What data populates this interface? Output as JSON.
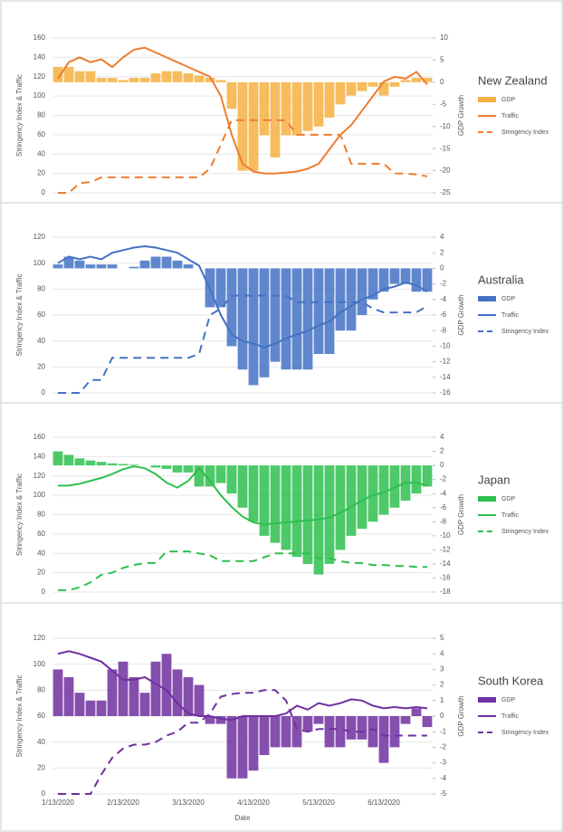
{
  "chart_data": [
    {
      "type": "combo",
      "title": "New Zealand",
      "y_label": "Stringency Index & Traffic",
      "y2_label": "GDP Growth",
      "ylim": [
        0,
        160
      ],
      "yticks": [
        0,
        20,
        40,
        60,
        80,
        100,
        120,
        140,
        160
      ],
      "y2lim": [
        -25,
        10
      ],
      "y2ticks": [
        -25,
        -20,
        -15,
        -10,
        -5,
        0,
        5,
        10
      ],
      "series": [
        {
          "name": "GDP",
          "kind": "bar",
          "axis": "y2",
          "color": "#f5b041",
          "values": [
            3.5,
            3.5,
            2.5,
            2.5,
            1,
            1,
            0.5,
            1,
            1,
            2,
            2.5,
            2.5,
            2,
            1.5,
            1,
            0.5,
            -6,
            -20,
            -20,
            -12,
            -17,
            -12,
            -12,
            -11,
            -10,
            -8,
            -5,
            -3,
            -2,
            -1,
            -3,
            -1,
            0.5,
            1,
            1
          ]
        },
        {
          "name": "Traffic",
          "kind": "line",
          "color": "#ed7d31",
          "values": [
            118,
            135,
            140,
            135,
            138,
            130,
            140,
            148,
            150,
            145,
            140,
            135,
            130,
            125,
            120,
            100,
            60,
            30,
            22,
            20,
            20,
            21,
            22,
            25,
            30,
            45,
            60,
            70,
            85,
            100,
            115,
            120,
            118,
            125,
            112
          ]
        },
        {
          "name": "Stringency Index",
          "kind": "line",
          "dashed": true,
          "color": "#ed7d31",
          "values": [
            0,
            0,
            10,
            11,
            16,
            16,
            16,
            16,
            16,
            16,
            16,
            16,
            16,
            16,
            25,
            50,
            75,
            75,
            75,
            75,
            75,
            75,
            60,
            60,
            60,
            60,
            60,
            30,
            30,
            30,
            30,
            20,
            20,
            19,
            17
          ]
        }
      ]
    },
    {
      "type": "combo",
      "title": "Australia",
      "y_label": "Stringency Index & Traffic",
      "y2_label": "GDP Growth",
      "ylim": [
        0,
        120
      ],
      "yticks": [
        0,
        20,
        40,
        60,
        80,
        100,
        120
      ],
      "y2lim": [
        -16,
        4
      ],
      "y2ticks": [
        -16,
        -14,
        -12,
        -10,
        -8,
        -6,
        -4,
        -2,
        0,
        2,
        4
      ],
      "series": [
        {
          "name": "GDP",
          "kind": "bar",
          "axis": "y2",
          "color": "#4472c4",
          "values": [
            0.5,
            1.5,
            1,
            0.5,
            0.5,
            0.5,
            0,
            0.2,
            1,
            1.5,
            1.5,
            1,
            0.5,
            0,
            -5,
            -5,
            -10,
            -13,
            -15,
            -14,
            -12,
            -13,
            -13,
            -13,
            -11,
            -11,
            -8,
            -8,
            -6,
            -4,
            -3,
            -2,
            -2,
            -3,
            -3
          ]
        },
        {
          "name": "Traffic",
          "kind": "line",
          "color": "#4472c4",
          "values": [
            100,
            105,
            103,
            105,
            103,
            108,
            110,
            112,
            113,
            112,
            110,
            108,
            103,
            98,
            80,
            60,
            45,
            40,
            38,
            35,
            38,
            42,
            45,
            48,
            52,
            55,
            62,
            67,
            72,
            75,
            80,
            82,
            85,
            83,
            78
          ]
        },
        {
          "name": "Stringency Index",
          "kind": "line",
          "dashed": true,
          "color": "#4472c4",
          "values": [
            0,
            0,
            0,
            10,
            10,
            27,
            27,
            27,
            27,
            27,
            27,
            27,
            27,
            30,
            60,
            65,
            75,
            75,
            75,
            75,
            75,
            75,
            70,
            70,
            70,
            70,
            70,
            70,
            70,
            65,
            62,
            62,
            62,
            62,
            67
          ]
        }
      ]
    },
    {
      "type": "combo",
      "title": "Japan",
      "y_label": "Stringency Index & Traffic",
      "y2_label": "GDP Growth",
      "ylim": [
        0,
        160
      ],
      "yticks": [
        0,
        20,
        40,
        60,
        80,
        100,
        120,
        140,
        160
      ],
      "y2lim": [
        -18,
        4
      ],
      "y2ticks": [
        -18,
        -16,
        -14,
        -12,
        -10,
        -8,
        -6,
        -4,
        -2,
        0,
        2,
        4
      ],
      "series": [
        {
          "name": "GDP",
          "kind": "bar",
          "axis": "y2",
          "color": "#2ebf4f",
          "values": [
            2,
            1.5,
            1,
            0.7,
            0.5,
            0.3,
            0.2,
            0.1,
            0,
            -0.3,
            -0.5,
            -1,
            -1,
            -3,
            -3,
            -2.5,
            -4,
            -6,
            -8,
            -10,
            -11,
            -12,
            -13,
            -14,
            -15.5,
            -14,
            -12,
            -10,
            -9,
            -8,
            -7,
            -6,
            -5,
            -4,
            -3
          ]
        },
        {
          "name": "Traffic",
          "kind": "line",
          "color": "#2ebf4f",
          "values": [
            110,
            110,
            112,
            115,
            118,
            122,
            127,
            130,
            128,
            122,
            113,
            108,
            115,
            128,
            115,
            100,
            88,
            78,
            72,
            70,
            71,
            72,
            73,
            74,
            75,
            77,
            82,
            88,
            95,
            100,
            103,
            108,
            113,
            113,
            110
          ]
        },
        {
          "name": "Stringency Index",
          "kind": "line",
          "dashed": true,
          "color": "#2ebf4f",
          "values": [
            2,
            2,
            5,
            10,
            18,
            20,
            25,
            28,
            30,
            30,
            42,
            42,
            42,
            40,
            38,
            32,
            32,
            32,
            32,
            36,
            40,
            40,
            40,
            40,
            35,
            35,
            32,
            30,
            30,
            28,
            28,
            27,
            27,
            26,
            26
          ]
        }
      ]
    },
    {
      "type": "combo",
      "title": "South Korea",
      "y_label": "Stringency Index & Traffic",
      "y2_label": "GDP Growth",
      "x_label": "Date",
      "categories": [
        "1/13/2020",
        null,
        null,
        null,
        null,
        null,
        "2/13/2020",
        null,
        null,
        null,
        null,
        null,
        "3/13/2020",
        null,
        null,
        null,
        null,
        null,
        "4/13/2020",
        null,
        null,
        null,
        null,
        null,
        "5/13/2020",
        null,
        null,
        null,
        null,
        null,
        "6/13/2020",
        null,
        null,
        null,
        null
      ],
      "ylim": [
        0,
        120
      ],
      "yticks": [
        0,
        20,
        40,
        60,
        80,
        100,
        120
      ],
      "y2lim": [
        -5,
        5
      ],
      "y2ticks": [
        -5,
        -4,
        -3,
        -2,
        -1,
        0,
        1,
        2,
        3,
        4,
        5
      ],
      "series": [
        {
          "name": "GDP",
          "kind": "bar",
          "axis": "y2",
          "color": "#7030a0",
          "values": [
            3,
            2.5,
            1.5,
            1,
            1,
            3,
            3.5,
            2.5,
            1.5,
            3.5,
            4,
            3,
            2.5,
            2,
            -0.5,
            -0.5,
            -4,
            -4,
            -3.5,
            -2.5,
            -2,
            -2,
            -2,
            -1,
            -0.5,
            -2,
            -2,
            -1.5,
            -1.5,
            -2,
            -3,
            -2,
            -0.5,
            0.5,
            -0.7
          ]
        },
        {
          "name": "Traffic",
          "kind": "line",
          "color": "#7030a0",
          "values": [
            108,
            110,
            108,
            105,
            102,
            95,
            88,
            88,
            90,
            85,
            80,
            70,
            62,
            60,
            60,
            58,
            57,
            60,
            60,
            60,
            60,
            62,
            68,
            65,
            70,
            68,
            70,
            73,
            72,
            68,
            66,
            67,
            66,
            67,
            66
          ]
        },
        {
          "name": "Stringency Index",
          "kind": "line",
          "dashed": true,
          "color": "#7030a0",
          "values": [
            0,
            0,
            0,
            0,
            15,
            28,
            35,
            38,
            38,
            40,
            45,
            48,
            55,
            55,
            62,
            75,
            77,
            78,
            78,
            80,
            80,
            72,
            50,
            48,
            50,
            50,
            50,
            48,
            48,
            50,
            45,
            45,
            45,
            45,
            45
          ]
        }
      ]
    }
  ]
}
